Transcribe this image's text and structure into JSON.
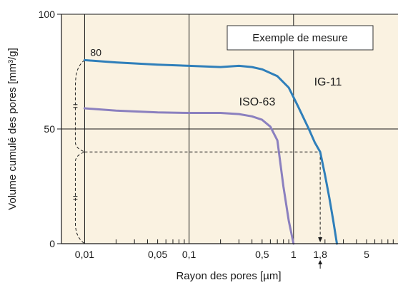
{
  "chart_data": {
    "type": "line",
    "xlabel": "Rayon des pores [µm]",
    "ylabel": "Volume cumulé des pores [mm³/g]",
    "x_scale": "log",
    "xlim": [
      0.006,
      10
    ],
    "ylim": [
      0,
      100
    ],
    "x_tick_labels": [
      {
        "v": 0.01,
        "t": "0,01"
      },
      {
        "v": 0.05,
        "t": "0,05"
      },
      {
        "v": 0.1,
        "t": "0,1"
      },
      {
        "v": 0.5,
        "t": "0,5"
      },
      {
        "v": 1,
        "t": "1"
      },
      {
        "v": 1.8,
        "t": "1,8"
      },
      {
        "v": 5,
        "t": "5"
      }
    ],
    "x_grid": [
      0.01,
      0.1,
      1,
      10
    ],
    "x_minor_ticks": [
      0.02,
      0.03,
      0.04,
      0.05,
      0.06,
      0.07,
      0.08,
      0.09,
      0.2,
      0.3,
      0.4,
      0.5,
      0.6,
      0.7,
      0.8,
      0.9,
      2,
      3,
      4,
      5,
      6,
      7,
      8,
      9
    ],
    "y_ticks": [
      {
        "v": 0,
        "t": "0"
      },
      {
        "v": 50,
        "t": "50"
      },
      {
        "v": 100,
        "t": "100"
      }
    ],
    "y_grid": [
      50
    ],
    "legend_box": "Exemple de mesure",
    "series": [
      {
        "name": "IG-11",
        "color": "#2f7fba",
        "points": [
          [
            0.01,
            80
          ],
          [
            0.02,
            79
          ],
          [
            0.05,
            78
          ],
          [
            0.1,
            77.5
          ],
          [
            0.2,
            77
          ],
          [
            0.3,
            77.5
          ],
          [
            0.4,
            77
          ],
          [
            0.5,
            76
          ],
          [
            0.7,
            73
          ],
          [
            0.9,
            68
          ],
          [
            1.1,
            60
          ],
          [
            1.4,
            50
          ],
          [
            1.6,
            44
          ],
          [
            1.8,
            40
          ],
          [
            2.0,
            30
          ],
          [
            2.2,
            20
          ],
          [
            2.4,
            10
          ],
          [
            2.6,
            0
          ]
        ]
      },
      {
        "name": "ISO-63",
        "color": "#8b80bf",
        "points": [
          [
            0.01,
            59
          ],
          [
            0.02,
            58
          ],
          [
            0.05,
            57.2
          ],
          [
            0.1,
            57
          ],
          [
            0.2,
            57
          ],
          [
            0.3,
            56.5
          ],
          [
            0.4,
            55.5
          ],
          [
            0.5,
            54
          ],
          [
            0.6,
            51
          ],
          [
            0.7,
            45
          ],
          [
            0.8,
            25
          ],
          [
            0.9,
            10
          ],
          [
            1.0,
            0
          ]
        ]
      }
    ],
    "annotations": {
      "value_80": "80",
      "marker_value": 1.8,
      "dashed_level": 40
    }
  }
}
